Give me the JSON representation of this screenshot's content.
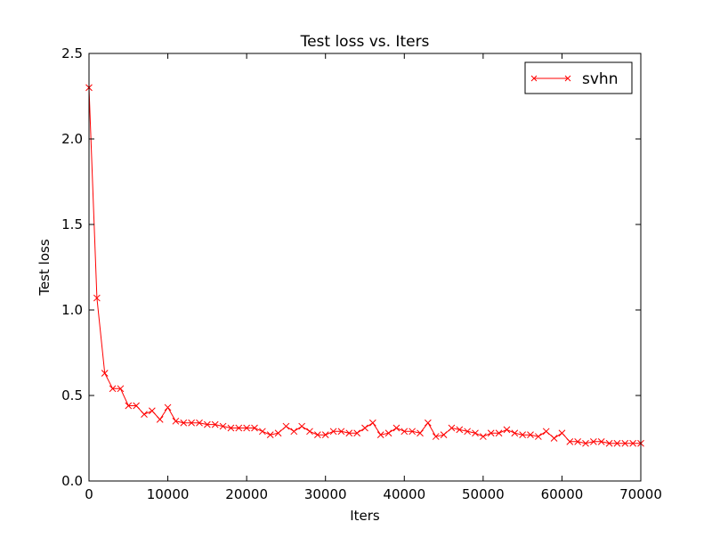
{
  "chart_data": {
    "type": "line",
    "title": "Test loss  vs. Iters",
    "xlabel": "Iters",
    "ylabel": "Test loss",
    "xlim": [
      0,
      70000
    ],
    "ylim": [
      0.0,
      2.5
    ],
    "xticks": [
      0,
      10000,
      20000,
      30000,
      40000,
      50000,
      60000,
      70000
    ],
    "xtick_labels": [
      "0",
      "10000",
      "20000",
      "30000",
      "40000",
      "50000",
      "60000",
      "70000"
    ],
    "yticks": [
      0.0,
      0.5,
      1.0,
      1.5,
      2.0,
      2.5
    ],
    "ytick_labels": [
      "0.0",
      "0.5",
      "1.0",
      "1.5",
      "2.0",
      "2.5"
    ],
    "grid": false,
    "legend_position": "top-right",
    "series": [
      {
        "name": "svhn",
        "color": "#ff0000",
        "marker": "x",
        "x": [
          0,
          1000,
          2000,
          3000,
          4000,
          5000,
          6000,
          7000,
          8000,
          9000,
          10000,
          11000,
          12000,
          13000,
          14000,
          15000,
          16000,
          17000,
          18000,
          19000,
          20000,
          21000,
          22000,
          23000,
          24000,
          25000,
          26000,
          27000,
          28000,
          29000,
          30000,
          31000,
          32000,
          33000,
          34000,
          35000,
          36000,
          37000,
          38000,
          39000,
          40000,
          41000,
          42000,
          43000,
          44000,
          45000,
          46000,
          47000,
          48000,
          49000,
          50000,
          51000,
          52000,
          53000,
          54000,
          55000,
          56000,
          57000,
          58000,
          59000,
          60000,
          61000,
          62000,
          63000,
          64000,
          65000,
          66000,
          67000,
          68000,
          69000,
          70000
        ],
        "y": [
          2.3,
          1.07,
          0.63,
          0.54,
          0.54,
          0.44,
          0.44,
          0.39,
          0.41,
          0.36,
          0.43,
          0.35,
          0.34,
          0.34,
          0.34,
          0.33,
          0.33,
          0.32,
          0.31,
          0.31,
          0.31,
          0.31,
          0.29,
          0.27,
          0.28,
          0.32,
          0.29,
          0.32,
          0.29,
          0.27,
          0.27,
          0.29,
          0.29,
          0.28,
          0.28,
          0.31,
          0.34,
          0.27,
          0.28,
          0.31,
          0.29,
          0.29,
          0.28,
          0.34,
          0.26,
          0.27,
          0.31,
          0.3,
          0.29,
          0.28,
          0.26,
          0.28,
          0.28,
          0.3,
          0.28,
          0.27,
          0.27,
          0.26,
          0.29,
          0.25,
          0.28,
          0.23,
          0.23,
          0.22,
          0.23,
          0.23,
          0.22,
          0.22,
          0.22,
          0.22,
          0.22
        ]
      }
    ]
  }
}
